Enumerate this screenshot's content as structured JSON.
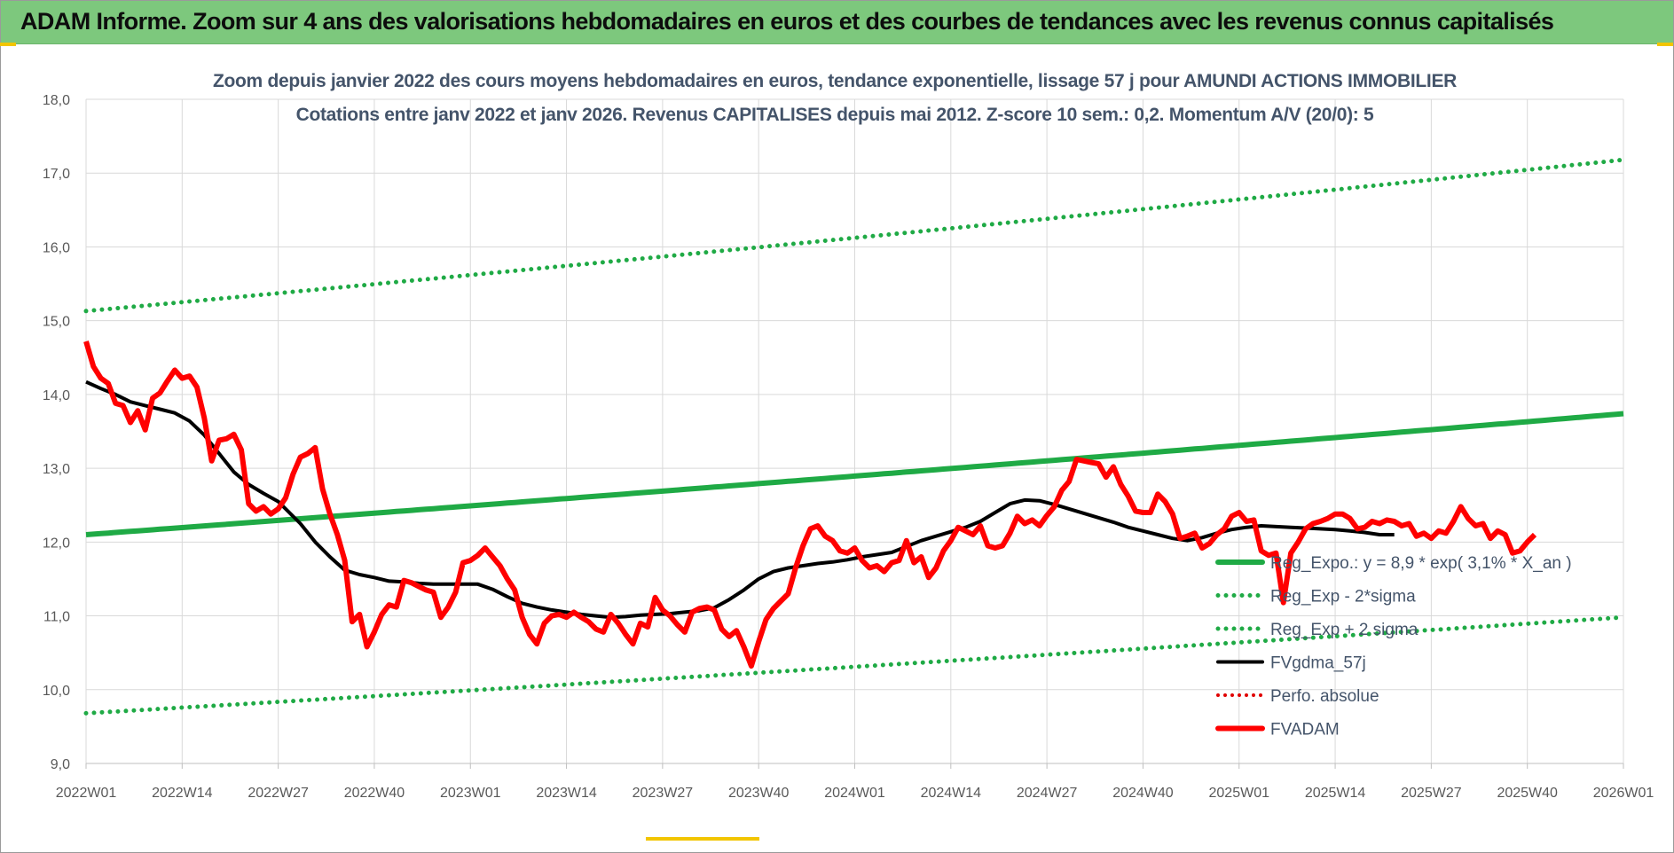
{
  "header": {
    "title": "ADAM Informe. Zoom sur 4 ans des valorisations hebdomadaires en euros et des courbes de tendances avec les revenus connus capitalisés"
  },
  "colors": {
    "banner": "#7dc87d",
    "trend": "#1faa45",
    "band": "#1faa45",
    "smooth": "#000000",
    "perf": "#e00000",
    "price": "#ff0000"
  },
  "chart_data": {
    "type": "line",
    "title_line1": "Zoom depuis janvier 2022 des cours moyens hebdomadaires en euros, tendance exponentielle, lissage 57 j pour AMUNDI ACTIONS IMMOBILIER",
    "title_line2": "Cotations entre janv 2022 et janv 2026. Revenus CAPITALISES depuis mai 2012. Z-score 10 sem.: 0,2. Momentum A/V (20/0): 5",
    "ylim": [
      9,
      18
    ],
    "y_ticks": [
      "9,0",
      "10,0",
      "11,0",
      "12,0",
      "13,0",
      "14,0",
      "15,0",
      "16,0",
      "17,0",
      "18,0"
    ],
    "x_ticks": [
      "2022W01",
      "2022W14",
      "2022W27",
      "2022W40",
      "2023W01",
      "2023W14",
      "2023W27",
      "2023W40",
      "2024W01",
      "2024W14",
      "2024W27",
      "2024W40",
      "2025W01",
      "2025W14",
      "2025W27",
      "2025W40",
      "2026W01"
    ],
    "grid": true,
    "legend_position": "right",
    "series": [
      {
        "name": "Reg_Expo.: y = 8,9 * exp( 3,1% *  X_an )",
        "style": "solid",
        "start": 12.1,
        "end": 13.74
      },
      {
        "name": "Reg_Exp - 2*sigma",
        "style": "dotted",
        "start": 9.68,
        "end": 10.98
      },
      {
        "name": "Reg_Exp + 2 sigma",
        "style": "dotted",
        "start": 15.13,
        "end": 17.18
      },
      {
        "name": "FVgdma_57j",
        "style": "solid-thin",
        "points": [
          [
            0,
            14.17
          ],
          [
            2,
            14.08
          ],
          [
            4,
            14.0
          ],
          [
            6,
            13.9
          ],
          [
            8,
            13.85
          ],
          [
            10,
            13.8
          ],
          [
            12,
            13.75
          ],
          [
            14,
            13.64
          ],
          [
            16,
            13.45
          ],
          [
            18,
            13.2
          ],
          [
            20,
            12.95
          ],
          [
            22,
            12.78
          ],
          [
            24,
            12.66
          ],
          [
            26,
            12.55
          ],
          [
            27,
            12.45
          ],
          [
            29,
            12.25
          ],
          [
            31,
            12.0
          ],
          [
            33,
            11.8
          ],
          [
            35,
            11.62
          ],
          [
            37,
            11.56
          ],
          [
            39,
            11.52
          ],
          [
            41,
            11.47
          ],
          [
            43,
            11.46
          ],
          [
            45,
            11.44
          ],
          [
            47,
            11.43
          ],
          [
            49,
            11.43
          ],
          [
            51,
            11.43
          ],
          [
            53,
            11.43
          ],
          [
            55,
            11.36
          ],
          [
            57,
            11.26
          ],
          [
            59,
            11.17
          ],
          [
            61,
            11.12
          ],
          [
            63,
            11.08
          ],
          [
            65,
            11.05
          ],
          [
            67,
            11.02
          ],
          [
            69,
            11.0
          ],
          [
            71,
            10.98
          ],
          [
            73,
            10.99
          ],
          [
            75,
            11.01
          ],
          [
            77,
            11.02
          ],
          [
            79,
            11.03
          ],
          [
            81,
            11.05
          ],
          [
            83,
            11.07
          ],
          [
            85,
            11.11
          ],
          [
            87,
            11.22
          ],
          [
            89,
            11.35
          ],
          [
            91,
            11.5
          ],
          [
            93,
            11.6
          ],
          [
            95,
            11.65
          ],
          [
            97,
            11.68
          ],
          [
            99,
            11.71
          ],
          [
            101,
            11.73
          ],
          [
            103,
            11.76
          ],
          [
            105,
            11.8
          ],
          [
            107,
            11.83
          ],
          [
            109,
            11.86
          ],
          [
            111,
            11.94
          ],
          [
            113,
            12.02
          ],
          [
            115,
            12.08
          ],
          [
            117,
            12.14
          ],
          [
            119,
            12.2
          ],
          [
            121,
            12.28
          ],
          [
            123,
            12.4
          ],
          [
            125,
            12.52
          ],
          [
            127,
            12.57
          ],
          [
            129,
            12.56
          ],
          [
            131,
            12.51
          ],
          [
            133,
            12.45
          ],
          [
            135,
            12.39
          ],
          [
            137,
            12.33
          ],
          [
            139,
            12.27
          ],
          [
            141,
            12.2
          ],
          [
            143,
            12.15
          ],
          [
            145,
            12.1
          ],
          [
            147,
            12.05
          ],
          [
            149,
            12.02
          ],
          [
            151,
            12.06
          ],
          [
            153,
            12.12
          ],
          [
            155,
            12.17
          ],
          [
            157,
            12.2
          ],
          [
            159,
            12.22
          ],
          [
            161,
            12.21
          ],
          [
            163,
            12.2
          ],
          [
            165,
            12.19
          ],
          [
            167,
            12.18
          ],
          [
            169,
            12.17
          ],
          [
            171,
            12.15
          ],
          [
            173,
            12.13
          ],
          [
            175,
            12.1
          ],
          [
            177,
            12.1
          ]
        ]
      },
      {
        "name": "Perfo. absolue",
        "style": "dotted"
      },
      {
        "name": "FVADAM",
        "style": "solid-thick",
        "points": [
          [
            0,
            14.72
          ],
          [
            1,
            14.38
          ],
          [
            2,
            14.22
          ],
          [
            3,
            14.15
          ],
          [
            4,
            13.88
          ],
          [
            5,
            13.85
          ],
          [
            6,
            13.62
          ],
          [
            7,
            13.78
          ],
          [
            8,
            13.52
          ],
          [
            9,
            13.95
          ],
          [
            10,
            14.02
          ],
          [
            11,
            14.18
          ],
          [
            12,
            14.33
          ],
          [
            13,
            14.22
          ],
          [
            14,
            14.25
          ],
          [
            15,
            14.1
          ],
          [
            16,
            13.68
          ],
          [
            17,
            13.1
          ],
          [
            18,
            13.38
          ],
          [
            19,
            13.4
          ],
          [
            20,
            13.46
          ],
          [
            21,
            13.25
          ],
          [
            22,
            12.52
          ],
          [
            23,
            12.42
          ],
          [
            24,
            12.48
          ],
          [
            25,
            12.38
          ],
          [
            26,
            12.45
          ],
          [
            27,
            12.6
          ],
          [
            28,
            12.92
          ],
          [
            29,
            13.15
          ],
          [
            30,
            13.2
          ],
          [
            31,
            13.28
          ],
          [
            32,
            12.72
          ],
          [
            33,
            12.38
          ],
          [
            34,
            12.1
          ],
          [
            35,
            11.75
          ],
          [
            36,
            10.92
          ],
          [
            37,
            11.02
          ],
          [
            38,
            10.58
          ],
          [
            39,
            10.78
          ],
          [
            40,
            11.02
          ],
          [
            41,
            11.15
          ],
          [
            42,
            11.12
          ],
          [
            43,
            11.48
          ],
          [
            44,
            11.45
          ],
          [
            45,
            11.4
          ],
          [
            46,
            11.35
          ],
          [
            47,
            11.32
          ],
          [
            48,
            10.98
          ],
          [
            49,
            11.12
          ],
          [
            50,
            11.32
          ],
          [
            51,
            11.72
          ],
          [
            52,
            11.75
          ],
          [
            53,
            11.82
          ],
          [
            54,
            11.92
          ],
          [
            55,
            11.8
          ],
          [
            56,
            11.68
          ],
          [
            57,
            11.5
          ],
          [
            58,
            11.35
          ],
          [
            59,
            10.98
          ],
          [
            60,
            10.75
          ],
          [
            61,
            10.62
          ],
          [
            62,
            10.9
          ],
          [
            63,
            11.0
          ],
          [
            64,
            11.02
          ],
          [
            65,
            10.98
          ],
          [
            66,
            11.05
          ],
          [
            67,
            10.98
          ],
          [
            68,
            10.92
          ],
          [
            69,
            10.82
          ],
          [
            70,
            10.78
          ],
          [
            71,
            11.02
          ],
          [
            72,
            10.9
          ],
          [
            73,
            10.75
          ],
          [
            74,
            10.62
          ],
          [
            75,
            10.9
          ],
          [
            76,
            10.85
          ],
          [
            77,
            11.25
          ],
          [
            78,
            11.08
          ],
          [
            79,
            11.0
          ],
          [
            80,
            10.88
          ],
          [
            81,
            10.78
          ],
          [
            82,
            11.05
          ],
          [
            83,
            11.1
          ],
          [
            84,
            11.12
          ],
          [
            85,
            11.08
          ],
          [
            86,
            10.82
          ],
          [
            87,
            10.72
          ],
          [
            88,
            10.8
          ],
          [
            89,
            10.58
          ],
          [
            90,
            10.32
          ],
          [
            91,
            10.65
          ],
          [
            92,
            10.95
          ],
          [
            93,
            11.1
          ],
          [
            94,
            11.2
          ],
          [
            95,
            11.3
          ],
          [
            96,
            11.65
          ],
          [
            97,
            11.95
          ],
          [
            98,
            12.18
          ],
          [
            99,
            12.22
          ],
          [
            100,
            12.08
          ],
          [
            101,
            12.02
          ],
          [
            102,
            11.88
          ],
          [
            103,
            11.85
          ],
          [
            104,
            11.92
          ],
          [
            105,
            11.75
          ],
          [
            106,
            11.65
          ],
          [
            107,
            11.68
          ],
          [
            108,
            11.6
          ],
          [
            109,
            11.72
          ],
          [
            110,
            11.75
          ],
          [
            111,
            12.02
          ],
          [
            112,
            11.72
          ],
          [
            113,
            11.8
          ],
          [
            114,
            11.52
          ],
          [
            115,
            11.65
          ],
          [
            116,
            11.88
          ],
          [
            117,
            12.02
          ],
          [
            118,
            12.2
          ],
          [
            119,
            12.15
          ],
          [
            120,
            12.1
          ],
          [
            121,
            12.22
          ],
          [
            122,
            11.95
          ],
          [
            123,
            11.92
          ],
          [
            124,
            11.95
          ],
          [
            125,
            12.12
          ],
          [
            126,
            12.35
          ],
          [
            127,
            12.25
          ],
          [
            128,
            12.3
          ],
          [
            129,
            12.22
          ],
          [
            130,
            12.36
          ],
          [
            131,
            12.48
          ],
          [
            132,
            12.7
          ],
          [
            133,
            12.82
          ],
          [
            134,
            13.12
          ],
          [
            135,
            13.1
          ],
          [
            136,
            13.08
          ],
          [
            137,
            13.06
          ],
          [
            138,
            12.88
          ],
          [
            139,
            13.02
          ],
          [
            140,
            12.78
          ],
          [
            141,
            12.62
          ],
          [
            142,
            12.42
          ],
          [
            143,
            12.4
          ],
          [
            144,
            12.4
          ],
          [
            145,
            12.65
          ],
          [
            146,
            12.55
          ],
          [
            147,
            12.38
          ],
          [
            148,
            12.05
          ],
          [
            149,
            12.08
          ],
          [
            150,
            12.12
          ],
          [
            151,
            11.92
          ],
          [
            152,
            11.98
          ],
          [
            153,
            12.1
          ],
          [
            154,
            12.18
          ],
          [
            155,
            12.35
          ],
          [
            156,
            12.4
          ],
          [
            157,
            12.28
          ],
          [
            158,
            12.3
          ],
          [
            159,
            11.88
          ],
          [
            160,
            11.82
          ],
          [
            161,
            11.85
          ],
          [
            162,
            11.18
          ],
          [
            163,
            11.85
          ],
          [
            164,
            12.0
          ],
          [
            165,
            12.18
          ],
          [
            166,
            12.25
          ],
          [
            167,
            12.28
          ],
          [
            168,
            12.32
          ],
          [
            169,
            12.38
          ],
          [
            170,
            12.38
          ],
          [
            171,
            12.32
          ],
          [
            172,
            12.18
          ],
          [
            173,
            12.2
          ],
          [
            174,
            12.28
          ],
          [
            175,
            12.25
          ],
          [
            176,
            12.3
          ],
          [
            177,
            12.28
          ],
          [
            178,
            12.22
          ],
          [
            179,
            12.25
          ],
          [
            180,
            12.08
          ],
          [
            181,
            12.12
          ],
          [
            182,
            12.05
          ],
          [
            183,
            12.15
          ],
          [
            184,
            12.12
          ],
          [
            185,
            12.28
          ],
          [
            186,
            12.48
          ],
          [
            187,
            12.32
          ],
          [
            188,
            12.22
          ],
          [
            189,
            12.25
          ],
          [
            190,
            12.05
          ],
          [
            191,
            12.15
          ],
          [
            192,
            12.1
          ],
          [
            193,
            11.85
          ],
          [
            194,
            11.88
          ],
          [
            195,
            12.0
          ],
          [
            196,
            12.1
          ]
        ]
      }
    ]
  }
}
